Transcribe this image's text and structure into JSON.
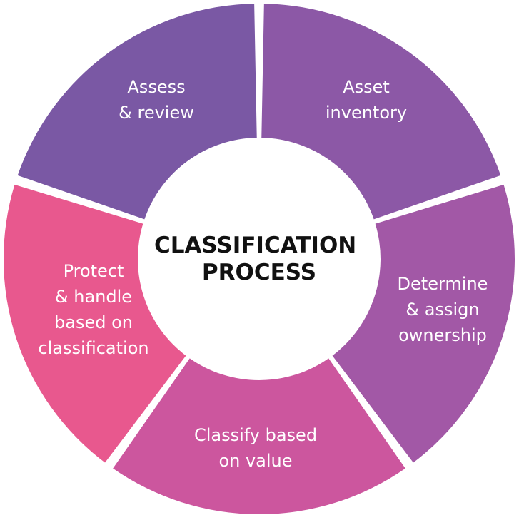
{
  "diagram": {
    "center": {
      "lines": [
        "CLASSIFICATION",
        "PROCESS"
      ]
    },
    "segments": [
      {
        "name": "asset-inventory",
        "lines": [
          "Asset",
          "inventory"
        ],
        "color": "#8c58a6"
      },
      {
        "name": "determine-assign-ownership",
        "lines": [
          "Determine",
          "& assign",
          "ownership"
        ],
        "color": "#a258a6"
      },
      {
        "name": "classify-based-on-value",
        "lines": [
          "Classify based",
          "on value"
        ],
        "color": "#cc569e"
      },
      {
        "name": "protect-handle",
        "lines": [
          "Protect",
          "& handle",
          "based on",
          "classification"
        ],
        "color": "#e8588e"
      },
      {
        "name": "assess-review",
        "lines": [
          "Assess",
          "& review"
        ],
        "color": "#7a58a4"
      }
    ]
  }
}
